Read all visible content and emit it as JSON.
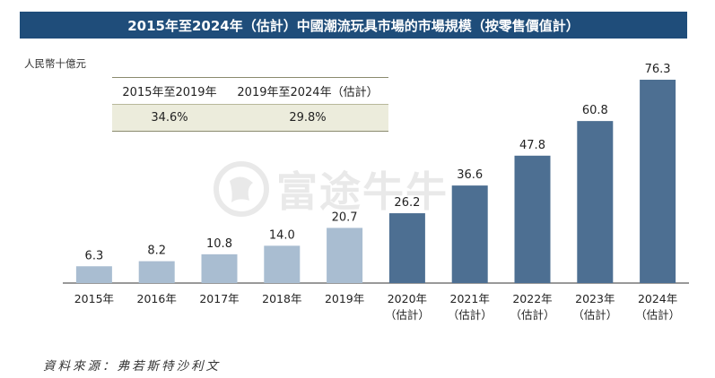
{
  "title": "2015年至2024年（估計）中國潮流玩具市場的市場規模（按零售價值計）",
  "unit_label": "人民幣十億元",
  "cagr_table": {
    "headers": [
      "2015年至2019年",
      "2019年至2024年（估計）"
    ],
    "values": [
      "34.6%",
      "29.8%"
    ]
  },
  "source": "資料來源：弗若斯特沙利文",
  "watermark": {
    "text": "富途牛牛"
  },
  "colors": {
    "historical": "#a9bdd1",
    "estimated": "#4d6f92",
    "title_bg": "#1f4d7a"
  },
  "chart_data": {
    "type": "bar",
    "categories": [
      "2015年",
      "2016年",
      "2017年",
      "2018年",
      "2019年",
      "2020年",
      "2021年",
      "2022年",
      "2023年",
      "2024年"
    ],
    "category_notes": [
      "",
      "",
      "",
      "",
      "",
      "（估計）",
      "（估計）",
      "（估計）",
      "（估計）",
      "（估計）"
    ],
    "values": [
      6.3,
      8.2,
      10.8,
      14.0,
      20.7,
      26.2,
      36.6,
      47.8,
      60.8,
      76.3
    ],
    "value_labels": [
      "6.3",
      "8.2",
      "10.8",
      "14.0",
      "20.7",
      "26.2",
      "36.6",
      "47.8",
      "60.8",
      "76.3"
    ],
    "estimated": [
      false,
      false,
      false,
      false,
      false,
      true,
      true,
      true,
      true,
      true
    ],
    "ylim": [
      0,
      80
    ],
    "grid": false
  }
}
